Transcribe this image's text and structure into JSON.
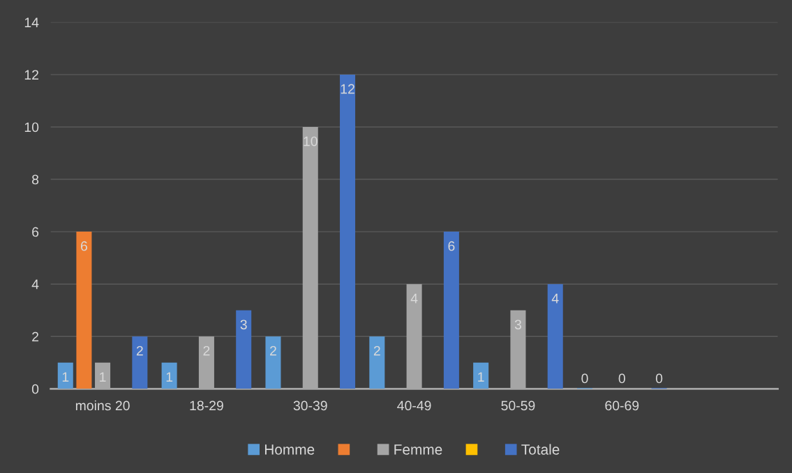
{
  "chart_data": {
    "type": "bar",
    "categories": [
      "moins 20",
      "18-29",
      "30-39",
      "40-49",
      "50-59",
      "60-69",
      null
    ],
    "series": [
      {
        "name": "Homme",
        "color": "#5b9bd5",
        "values": [
          1,
          1,
          2,
          2,
          1,
          0,
          null
        ]
      },
      {
        "color": "#ed7d31",
        "values": [
          6,
          null,
          null,
          null,
          null,
          null,
          null
        ]
      },
      {
        "name": "Femme",
        "color": "#a5a5a5",
        "values": [
          1,
          2,
          10,
          4,
          3,
          0,
          null
        ]
      },
      {
        "color": "#ffc000",
        "values": [
          null,
          null,
          null,
          null,
          null,
          null,
          null
        ]
      },
      {
        "name": "Totale",
        "color": "#4472c4",
        "values": [
          2,
          3,
          12,
          6,
          4,
          0,
          null
        ]
      }
    ],
    "ylim": [
      0,
      14
    ],
    "yticks": [
      0,
      2,
      4,
      6,
      8,
      10,
      12,
      14
    ],
    "grid": "y",
    "legend": "bottom",
    "data_labels": true
  }
}
